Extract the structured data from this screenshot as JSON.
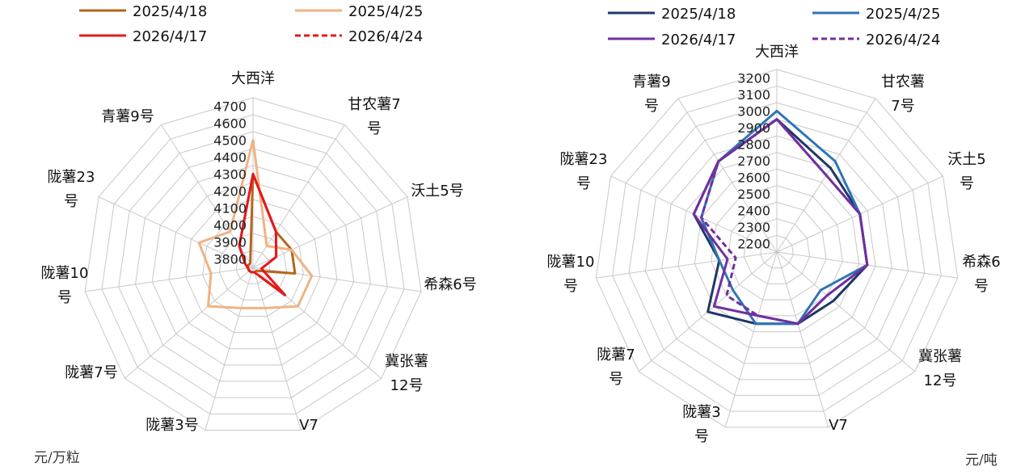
{
  "chart_data": [
    {
      "type": "radar",
      "unit": "元/万粒",
      "categories": [
        [
          "大西洋"
        ],
        [
          "甘农薯7",
          "号"
        ],
        [
          "沃土5号"
        ],
        [
          "希森6号"
        ],
        [
          "冀张薯",
          "12号"
        ],
        [
          "V7"
        ],
        [
          "陇薯3号"
        ],
        [
          "陇薯7号"
        ],
        [
          "陇薯10",
          "号"
        ],
        [
          "陇薯23",
          "号"
        ],
        [
          "青薯9号"
        ]
      ],
      "ticks": [
        "3800",
        "3900",
        "4000",
        "4100",
        "4200",
        "4300",
        "4400",
        "4500",
        "4600",
        "4700"
      ],
      "rmin": 3750,
      "rmax": 4750,
      "grid_step": 100,
      "series": [
        {
          "name": "2025/4/18",
          "color": "#b5651d",
          "dash": false,
          "values": [
            4300,
            4000,
            4000,
            4000,
            3780,
            3780,
            3780,
            3780,
            3780,
            3780,
            3780
          ]
        },
        {
          "name": "2025/4/25",
          "color": "#f0b383",
          "dash": false,
          "values": [
            4500,
            3900,
            4000,
            4100,
            4100,
            4000,
            4000,
            4100,
            4000,
            4100,
            4000
          ]
        },
        {
          "name": "2026/4/17",
          "color": "#e31a1c",
          "dash": false,
          "values": [
            4300,
            4000,
            3900,
            3800,
            4000,
            3780,
            3780,
            3780,
            3780,
            3800,
            3900
          ]
        },
        {
          "name": "2026/4/24",
          "color": "#e31a1c",
          "dash": true,
          "values": [
            4300,
            4000,
            3900,
            3800,
            4000,
            3780,
            3780,
            3780,
            3780,
            3800,
            3900
          ]
        }
      ]
    },
    {
      "type": "radar",
      "unit": "元/吨",
      "categories": [
        [
          "大西洋"
        ],
        [
          "甘农薯",
          "7号"
        ],
        [
          "沃土5",
          "号"
        ],
        [
          "希森6",
          "号"
        ],
        [
          "冀张薯",
          "12号"
        ],
        [
          "V7"
        ],
        [
          "陇薯3",
          "号"
        ],
        [
          "陇薯7",
          "号"
        ],
        [
          "陇薯10",
          "号"
        ],
        [
          "陇薯23",
          "号"
        ],
        [
          "青薯9",
          "号"
        ]
      ],
      "ticks": [
        "2200",
        "2300",
        "2400",
        "2500",
        "2600",
        "2700",
        "2800",
        "2900",
        "3000",
        "3100",
        "3200"
      ],
      "rmin": 2150,
      "rmax": 3250,
      "grid_step": 100,
      "series": [
        {
          "name": "2025/4/18",
          "color": "#1f3864",
          "dash": false,
          "values": [
            2950,
            2750,
            2700,
            2700,
            2600,
            2600,
            2600,
            2700,
            2500,
            2700,
            2800
          ]
        },
        {
          "name": "2025/4/25",
          "color": "#2e75b6",
          "dash": false,
          "values": [
            3000,
            2800,
            2700,
            2700,
            2500,
            2600,
            2600,
            2500,
            2500,
            2650,
            2800
          ]
        },
        {
          "name": "2026/4/17",
          "color": "#7030a0",
          "dash": false,
          "values": [
            2950,
            2700,
            2700,
            2700,
            2550,
            2600,
            2550,
            2650,
            2450,
            2700,
            2800
          ]
        },
        {
          "name": "2026/4/24",
          "color": "#7030a0",
          "dash": true,
          "values": [
            2950,
            2700,
            2700,
            2700,
            2550,
            2600,
            2550,
            2550,
            2400,
            2650,
            2800
          ]
        }
      ]
    }
  ]
}
